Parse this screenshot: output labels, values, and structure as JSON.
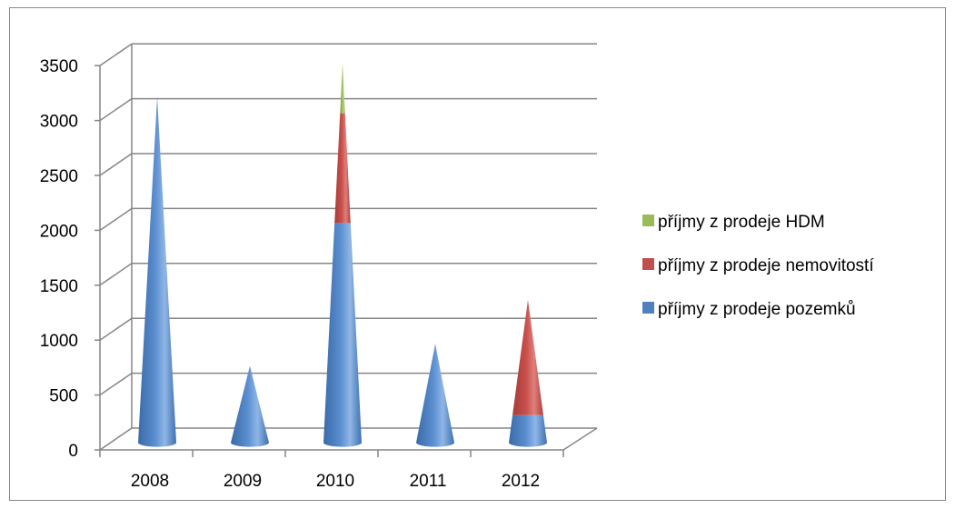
{
  "chart_data": {
    "type": "bar",
    "style": "3d-cone-stacked",
    "categories": [
      "2008",
      "2009",
      "2010",
      "2011",
      "2012"
    ],
    "series": [
      {
        "name": "příjmy z prodeje pozemků",
        "color": "#4f81bd",
        "values": [
          3150,
          700,
          2000,
          900,
          250
        ]
      },
      {
        "name": "příjmy z prodeje nemovitostí",
        "color": "#c0504d",
        "values": [
          0,
          0,
          1000,
          0,
          1050
        ]
      },
      {
        "name": "příjmy z prodeje HDM",
        "color": "#9bbb59",
        "values": [
          0,
          0,
          450,
          0,
          0
        ]
      }
    ],
    "y_ticks": [
      "0",
      "500",
      "1000",
      "1500",
      "2000",
      "2500",
      "3000",
      "3500"
    ],
    "ylim": [
      0,
      3500
    ],
    "grid": true,
    "legend_position": "right",
    "legend_order": [
      "příjmy z prodeje HDM",
      "příjmy z prodeje nemovitostí",
      "příjmy z prodeje pozemků"
    ]
  }
}
